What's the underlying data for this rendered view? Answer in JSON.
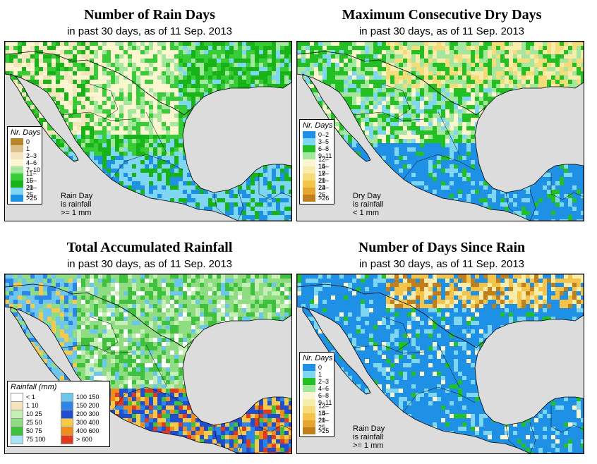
{
  "subtitle": "in past 30 days, as of  11 Sep. 2013",
  "colors": {
    "ocean": "#dcdcdc",
    "border": "#000000"
  },
  "panels": {
    "rain_days": {
      "title": "Number of Rain Days",
      "legend_title": "Nr. Days",
      "legend": [
        {
          "label": "0",
          "color": "#b8862a"
        },
        {
          "label": "1",
          "color": "#d9bf8a"
        },
        {
          "label": "2–3",
          "color": "#f3e4bd"
        },
        {
          "label": "4–6",
          "color": "#fbf6cf"
        },
        {
          "label": "7–10",
          "color": "#a6e7a0"
        },
        {
          "label": "11–15",
          "color": "#38cc38"
        },
        {
          "label": "16–20",
          "color": "#17b317"
        },
        {
          "label": "21–25",
          "color": "#7fd6f2"
        },
        {
          "label": ">25",
          "color": "#1e90e6"
        }
      ],
      "note": [
        "Rain Day",
        "is rainfall",
        ">= 1 mm"
      ]
    },
    "dry_days": {
      "title": "Maximum Consecutive Dry Days",
      "legend_title": "Nr. Days",
      "legend": [
        {
          "label": "0–2",
          "color": "#1e90e6"
        },
        {
          "label": "3–5",
          "color": "#7fd6f2"
        },
        {
          "label": "6–8",
          "color": "#22c022"
        },
        {
          "label": "9–11",
          "color": "#a6e7a0"
        },
        {
          "label": "12–14",
          "color": "#fbf6cf"
        },
        {
          "label": "15–17",
          "color": "#f7ecaa"
        },
        {
          "label": "18–20",
          "color": "#f6dc79"
        },
        {
          "label": "21–23",
          "color": "#f4c44a"
        },
        {
          "label": "24–26",
          "color": "#e6a531"
        },
        {
          "label": ">26",
          "color": "#c07f1b"
        }
      ],
      "note": [
        "Dry Day",
        "is rainfall",
        "< 1 mm"
      ]
    },
    "total_rain": {
      "title": "Total Accumulated Rainfall",
      "legend_title": "Rainfall (mm)",
      "legend_left": [
        {
          "label": "< 1",
          "color": "#ffffff"
        },
        {
          "label": "1   10",
          "color": "#f3e4bd"
        },
        {
          "label": "10   25",
          "color": "#c5efb5"
        },
        {
          "label": "25   50",
          "color": "#8fdc82"
        },
        {
          "label": "50   75",
          "color": "#3ec23e"
        },
        {
          "label": "75   100",
          "color": "#a8e4f5"
        }
      ],
      "legend_right": [
        {
          "label": "100  150",
          "color": "#6cc6f0"
        },
        {
          "label": "150  200",
          "color": "#2a86e8"
        },
        {
          "label": "200  300",
          "color": "#1e4fd0"
        },
        {
          "label": "300  400",
          "color": "#f7c948"
        },
        {
          "label": "400  600",
          "color": "#f08c1a"
        },
        {
          "label": "> 600",
          "color": "#e0391b"
        }
      ]
    },
    "since_rain": {
      "title": "Number of Days Since Rain",
      "legend_title": "Nr. Days",
      "legend": [
        {
          "label": "0",
          "color": "#1e90e6"
        },
        {
          "label": "1",
          "color": "#7fd6f2"
        },
        {
          "label": "2–3",
          "color": "#22c022"
        },
        {
          "label": "4–6",
          "color": "#a6e7a0"
        },
        {
          "label": "6–8",
          "color": "#fbf6cf"
        },
        {
          "label": "9–11",
          "color": "#f7ecaa"
        },
        {
          "label": "12–14",
          "color": "#f6dc79"
        },
        {
          "label": "15–20",
          "color": "#f4c44a"
        },
        {
          "label": "21–25",
          "color": "#e6a531"
        },
        {
          "label": ">25",
          "color": "#c07f1b"
        }
      ],
      "note": [
        "Rain Day",
        "is rainfall",
        ">= 1 mm"
      ]
    }
  }
}
